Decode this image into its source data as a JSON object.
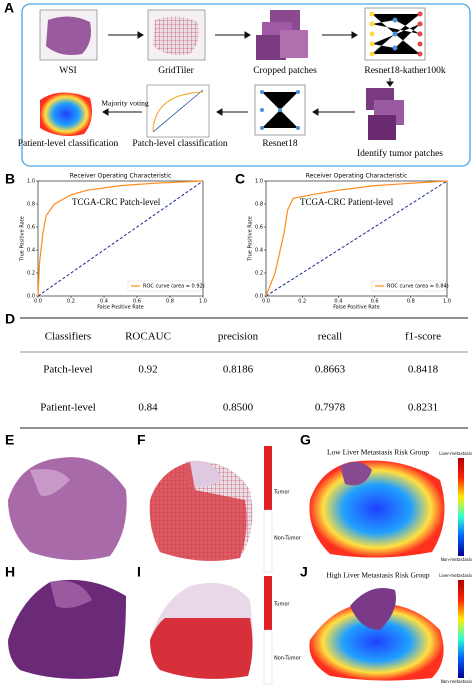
{
  "panel_labels": [
    "A",
    "B",
    "C",
    "D",
    "E",
    "F",
    "G",
    "H",
    "I",
    "J"
  ],
  "pipeline": {
    "steps": [
      "WSI",
      "GridTiler",
      "Cropped patches",
      "Resnet18-kather100k",
      "Identify tumor patches",
      "Resnet18",
      "Patch-level classification",
      "Patient-level classification"
    ],
    "edge_label": "Majority voting"
  },
  "chart_data": [
    {
      "type": "line",
      "title": "Receiver Operating Characteristic",
      "xlabel": "False Positive Rate",
      "ylabel": "True Positive Rate",
      "annotation": "TCGA-CRC Patch-level",
      "x": [
        0,
        0.01,
        0.03,
        0.05,
        0.1,
        0.2,
        0.3,
        0.5,
        0.7,
        1
      ],
      "series": [
        {
          "name": "ROC curve (area = 0.92)",
          "color": "#ff8c1a",
          "values": [
            0,
            0.3,
            0.55,
            0.7,
            0.8,
            0.88,
            0.92,
            0.96,
            0.98,
            1
          ]
        }
      ],
      "xlim": [
        0,
        1
      ],
      "ylim": [
        0,
        1
      ],
      "xticks": [
        {
          "value": 0,
          "label": "0.0"
        },
        0.2,
        0.4,
        0.6,
        0.8,
        {
          "value": 1,
          "label": "1.0"
        }
      ],
      "yticks": [
        {
          "value": 0,
          "label": "0.0"
        },
        0.2,
        0.4,
        0.6,
        0.8,
        {
          "value": 1,
          "label": "1.0"
        }
      ],
      "legend": "lower right",
      "grid": false
    },
    {
      "type": "line",
      "title": "Receiver Operating Characteristic",
      "xlabel": "False Positive Rate",
      "ylabel": "True Positive Rate",
      "annotation": "TCGA-CRC Patient-level",
      "x": [
        0,
        0.05,
        0.1,
        0.12,
        0.15,
        0.25,
        0.4,
        0.6,
        0.8,
        1
      ],
      "series": [
        {
          "name": "ROC curve (area = 0.84)",
          "color": "#ff8c1a",
          "values": [
            0,
            0.2,
            0.55,
            0.75,
            0.85,
            0.88,
            0.92,
            0.96,
            0.98,
            1
          ]
        }
      ],
      "xlim": [
        0,
        1
      ],
      "ylim": [
        0,
        1
      ],
      "xticks": [
        {
          "value": 0,
          "label": "0.0"
        },
        0.2,
        0.4,
        0.6,
        0.8,
        {
          "value": 1,
          "label": "1.0"
        }
      ],
      "yticks": [
        {
          "value": 0,
          "label": "0.0"
        },
        0.2,
        0.4,
        0.6,
        0.8,
        {
          "value": 1,
          "label": "1.0"
        }
      ],
      "legend": "lower right",
      "grid": false
    }
  ],
  "table": {
    "header": [
      "Classifiers",
      "ROCAUC",
      "precision",
      "recall",
      "f1-score"
    ],
    "rows": [
      [
        "Patch-level",
        "0.92",
        "0.8186",
        "0.8663",
        "0.8418"
      ],
      [
        "Patient-level",
        "0.84",
        "0.8500",
        "0.7978",
        "0.8231"
      ]
    ]
  },
  "maps": {
    "tumor_legend": [
      "Tumor",
      "Non-Tumor"
    ],
    "risk_titles": [
      "Low Liver Metastasis Risk Group",
      "High Liver Metastasis Risk Group"
    ],
    "risk_legend": [
      "Liver-metastasis",
      "Non-metastasis"
    ]
  }
}
